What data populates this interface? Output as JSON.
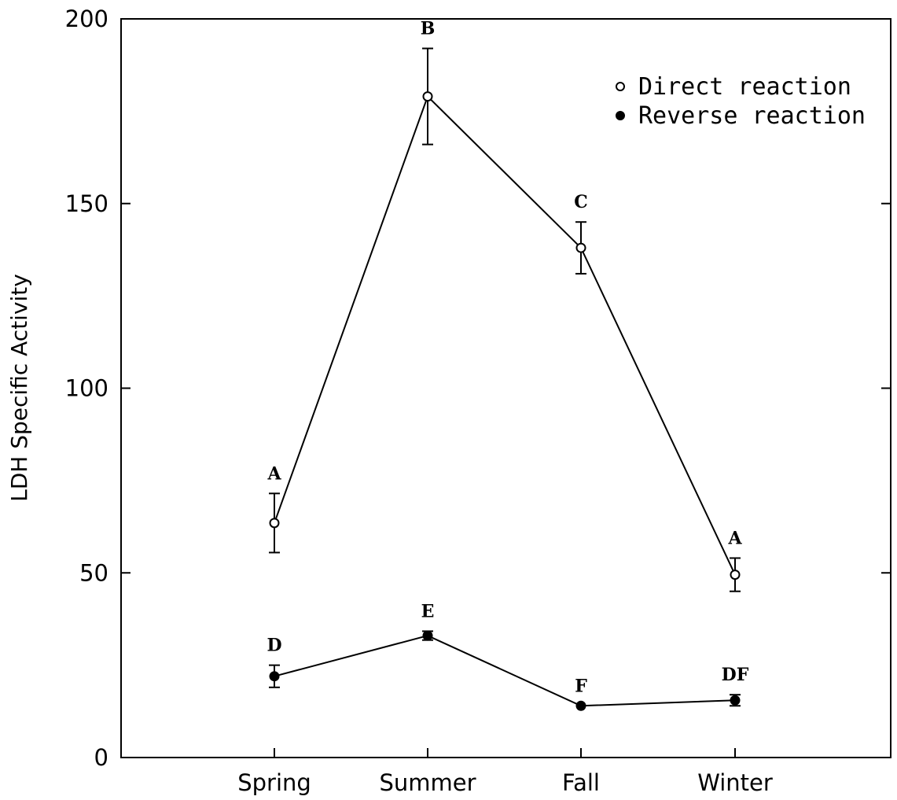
{
  "chart_data": {
    "type": "line",
    "title": "",
    "xlabel": "",
    "ylabel": "LDH Specific Activity",
    "categories": [
      "Spring",
      "Summer",
      "Fall",
      "Winter"
    ],
    "ylim": [
      0,
      200
    ],
    "yticks": [
      "0",
      "50",
      "100",
      "150",
      "200"
    ],
    "grid": false,
    "legend_position": "top-right",
    "series": [
      {
        "name": "Direct reaction",
        "marker": "open-circle",
        "values": [
          63.5,
          179,
          138,
          49.5
        ],
        "errors": [
          8,
          13,
          7,
          4.5
        ],
        "labels": [
          "A",
          "B",
          "C",
          "A"
        ]
      },
      {
        "name": "Reverse reaction",
        "marker": "filled-circle",
        "values": [
          22,
          33,
          14,
          15.5
        ],
        "errors": [
          3,
          1.2,
          0,
          1.5
        ],
        "labels": [
          "D",
          "E",
          "F",
          "DF"
        ]
      }
    ]
  }
}
